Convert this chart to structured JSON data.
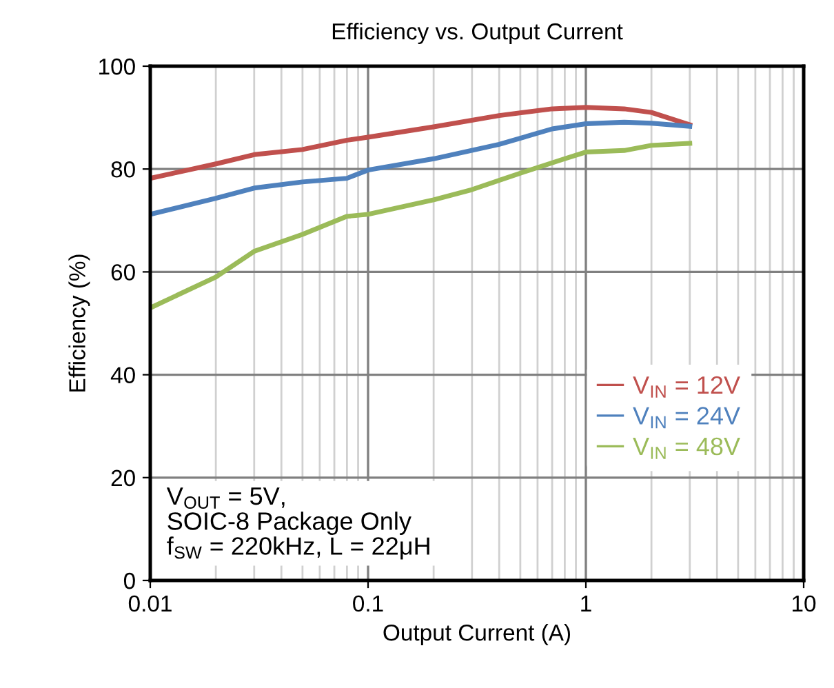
{
  "chart_data": {
    "type": "line",
    "title": "Efficiency vs. Output Current",
    "xlabel": "Output Current (A)",
    "ylabel": "Efficiency (%)",
    "log": "x",
    "xlim": [
      0.01,
      10
    ],
    "xticks": [
      0.01,
      0.1,
      1,
      10
    ],
    "ylim": [
      0,
      100
    ],
    "yticks": [
      0,
      20,
      40,
      60,
      80,
      100
    ],
    "grid": true,
    "legend": "bottom right",
    "marker": "none",
    "line_style": "solid",
    "annotations": [
      "V$_{OUT}$ = 5V,\nSOIC-8 Package Only\nf$_{SW}$ = 220kHz, L = 22μH"
    ],
    "series": [
      {
        "name": "V$_{IN}$ = 12V",
        "color": "#c0504d",
        "x": [
          0.01,
          0.02,
          0.03,
          0.05,
          0.08,
          0.1,
          0.2,
          0.4,
          0.7,
          1,
          1.5,
          2,
          3
        ],
        "values": [
          78.2,
          81,
          82.8,
          83.8,
          85.6,
          86.2,
          88.2,
          90.4,
          91.7,
          92.0,
          91.7,
          91.0,
          88.6
        ]
      },
      {
        "name": "V$_{IN}$ = 24V",
        "color": "#4f81bd",
        "x": [
          0.01,
          0.02,
          0.03,
          0.05,
          0.08,
          0.1,
          0.2,
          0.4,
          0.7,
          1,
          1.5,
          2,
          3
        ],
        "values": [
          71.2,
          74.3,
          76.3,
          77.5,
          78.2,
          79.8,
          82,
          84.8,
          87.8,
          88.8,
          89.1,
          88.9,
          88.3
        ]
      },
      {
        "name": "V$_{IN}$ = 48V",
        "color": "#9bbb59",
        "x": [
          0.01,
          0.02,
          0.03,
          0.05,
          0.08,
          0.1,
          0.2,
          0.3,
          0.5,
          0.8,
          1,
          1.5,
          2,
          3
        ],
        "values": [
          53,
          59,
          64,
          67.3,
          70.8,
          71.2,
          74,
          76,
          79.2,
          82,
          83.3,
          83.6,
          84.6,
          85
        ]
      }
    ]
  }
}
